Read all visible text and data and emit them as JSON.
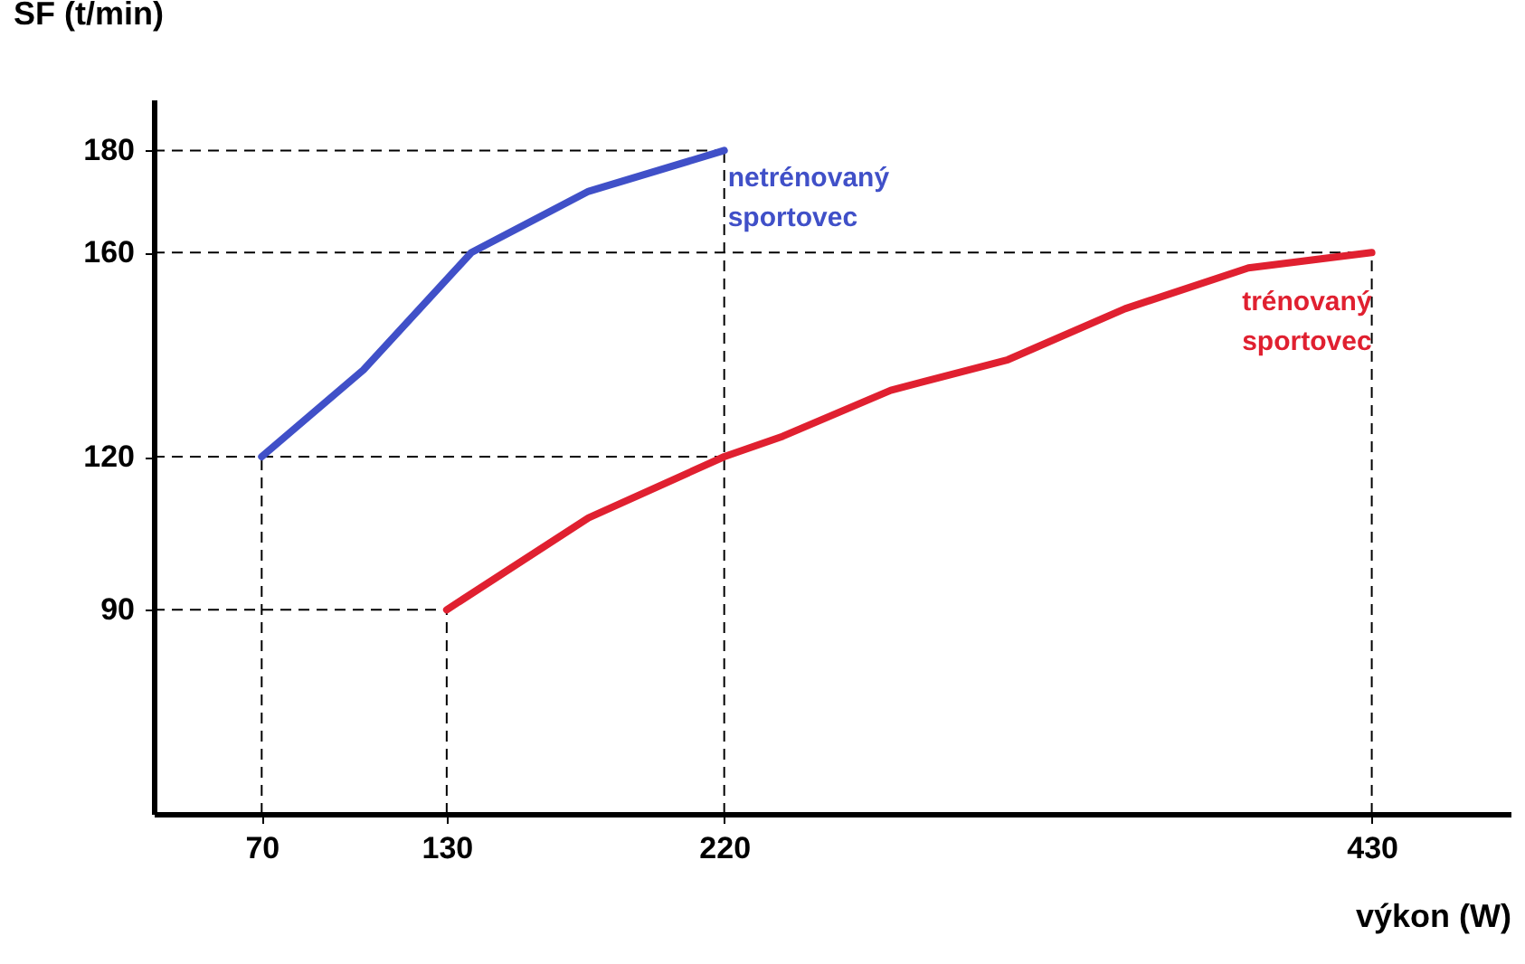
{
  "chart_data": {
    "type": "line",
    "xlabel": "výkon (W)",
    "ylabel": "SF (t/min)",
    "xlim": [
      35,
      475
    ],
    "ylim": [
      50,
      190
    ],
    "xticks": [
      70,
      130,
      220,
      430
    ],
    "yticks": [
      90,
      120,
      160,
      180
    ],
    "line_style": "solid",
    "series": [
      {
        "name": "netrénovaný sportovec",
        "color": "#4050c8",
        "x": [
          70,
          103,
          138,
          176,
          220
        ],
        "values": [
          120,
          137,
          160,
          172,
          180
        ]
      },
      {
        "name": "trénovaný sportovec",
        "color": "#e02030",
        "x": [
          130,
          176,
          220,
          239,
          274,
          312,
          350,
          390,
          430
        ],
        "values": [
          90,
          108,
          120,
          124,
          133,
          139,
          149,
          157,
          160
        ]
      }
    ],
    "ref_lines": [
      {
        "axis": "x",
        "value": 70,
        "line_style": "dashed"
      },
      {
        "axis": "x",
        "value": 130,
        "line_style": "dashed"
      },
      {
        "axis": "x",
        "value": 220,
        "line_style": "dashed"
      },
      {
        "axis": "x",
        "value": 430,
        "line_style": "dashed"
      },
      {
        "axis": "y",
        "value": 90,
        "line_style": "dashed"
      },
      {
        "axis": "y",
        "value": 120,
        "line_style": "dashed"
      },
      {
        "axis": "y",
        "value": 160,
        "line_style": "dashed"
      },
      {
        "axis": "y",
        "value": 180,
        "line_style": "dashed"
      }
    ]
  }
}
